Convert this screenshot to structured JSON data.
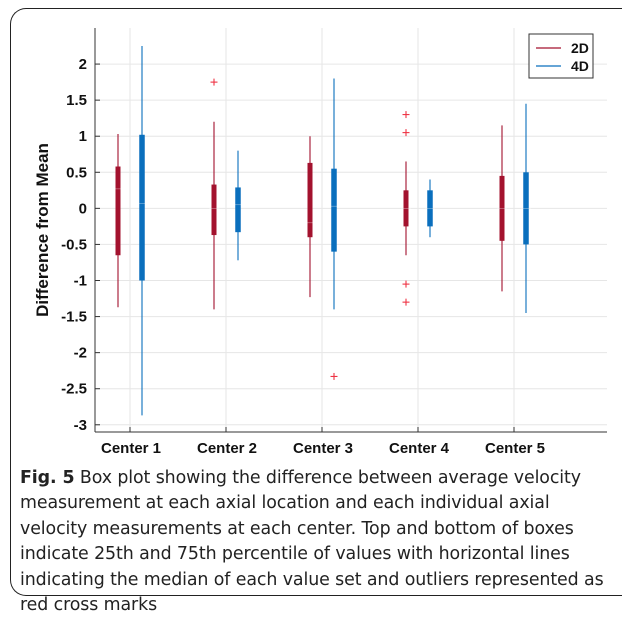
{
  "chart_data": {
    "type": "box",
    "title": "",
    "xlabel": "",
    "ylabel": "Difference from Mean",
    "ylim": [
      -3.1,
      2.5
    ],
    "yticks": [
      -3,
      -2.5,
      -2,
      -1.5,
      -1,
      -0.5,
      0,
      0.5,
      1,
      1.5,
      2
    ],
    "ytick_labels": [
      "-3",
      "-2.5",
      "-2",
      "-1.5",
      "-1",
      "-0.5",
      "0",
      "0.5",
      "1",
      "1.5",
      "2"
    ],
    "grid": true,
    "legend_position": "top-right",
    "categories": [
      "Center 1",
      "Center 2",
      "Center 3",
      "Center 4",
      "Center 5"
    ],
    "series": [
      {
        "name": "2D",
        "color": "#a3122e",
        "boxes": [
          {
            "min": -1.37,
            "q1": -0.65,
            "median": 0.27,
            "q3": 0.58,
            "max": 1.03,
            "outliers": []
          },
          {
            "min": -1.4,
            "q1": -0.37,
            "median": 0.0,
            "q3": 0.33,
            "max": 1.2,
            "outliers": [
              1.75
            ]
          },
          {
            "min": -1.23,
            "q1": -0.4,
            "median": -0.2,
            "q3": 0.63,
            "max": 1.0,
            "outliers": []
          },
          {
            "min": -0.65,
            "q1": -0.25,
            "median": 0.0,
            "q3": 0.25,
            "max": 0.65,
            "outliers": [
              1.3,
              1.05,
              -1.05,
              -1.3
            ]
          },
          {
            "min": -1.15,
            "q1": -0.45,
            "median": 0.0,
            "q3": 0.45,
            "max": 1.15,
            "outliers": []
          }
        ]
      },
      {
        "name": "4D",
        "color": "#0a6fbd",
        "boxes": [
          {
            "min": -2.87,
            "q1": -1.0,
            "median": 0.07,
            "q3": 1.02,
            "max": 2.25,
            "outliers": []
          },
          {
            "min": -0.72,
            "q1": -0.33,
            "median": 0.05,
            "q3": 0.29,
            "max": 0.8,
            "outliers": []
          },
          {
            "min": -1.4,
            "q1": -0.6,
            "median": 0.03,
            "q3": 0.55,
            "max": 1.8,
            "outliers": [
              -2.33
            ]
          },
          {
            "min": -0.4,
            "q1": -0.25,
            "median": 0.0,
            "q3": 0.25,
            "max": 0.4,
            "outliers": []
          },
          {
            "min": -1.45,
            "q1": -0.5,
            "median": 0.0,
            "q3": 0.5,
            "max": 1.45,
            "outliers": []
          }
        ]
      }
    ]
  },
  "caption": {
    "label": "Fig. 5",
    "text": "Box plot showing the difference between average velocity measurement at each axial location and each individual axial velocity measurements at each center. Top and bottom of boxes indicate 25th and 75th percentile of values with horizontal lines indicating the median of each value set and outliers represented as red cross marks"
  }
}
